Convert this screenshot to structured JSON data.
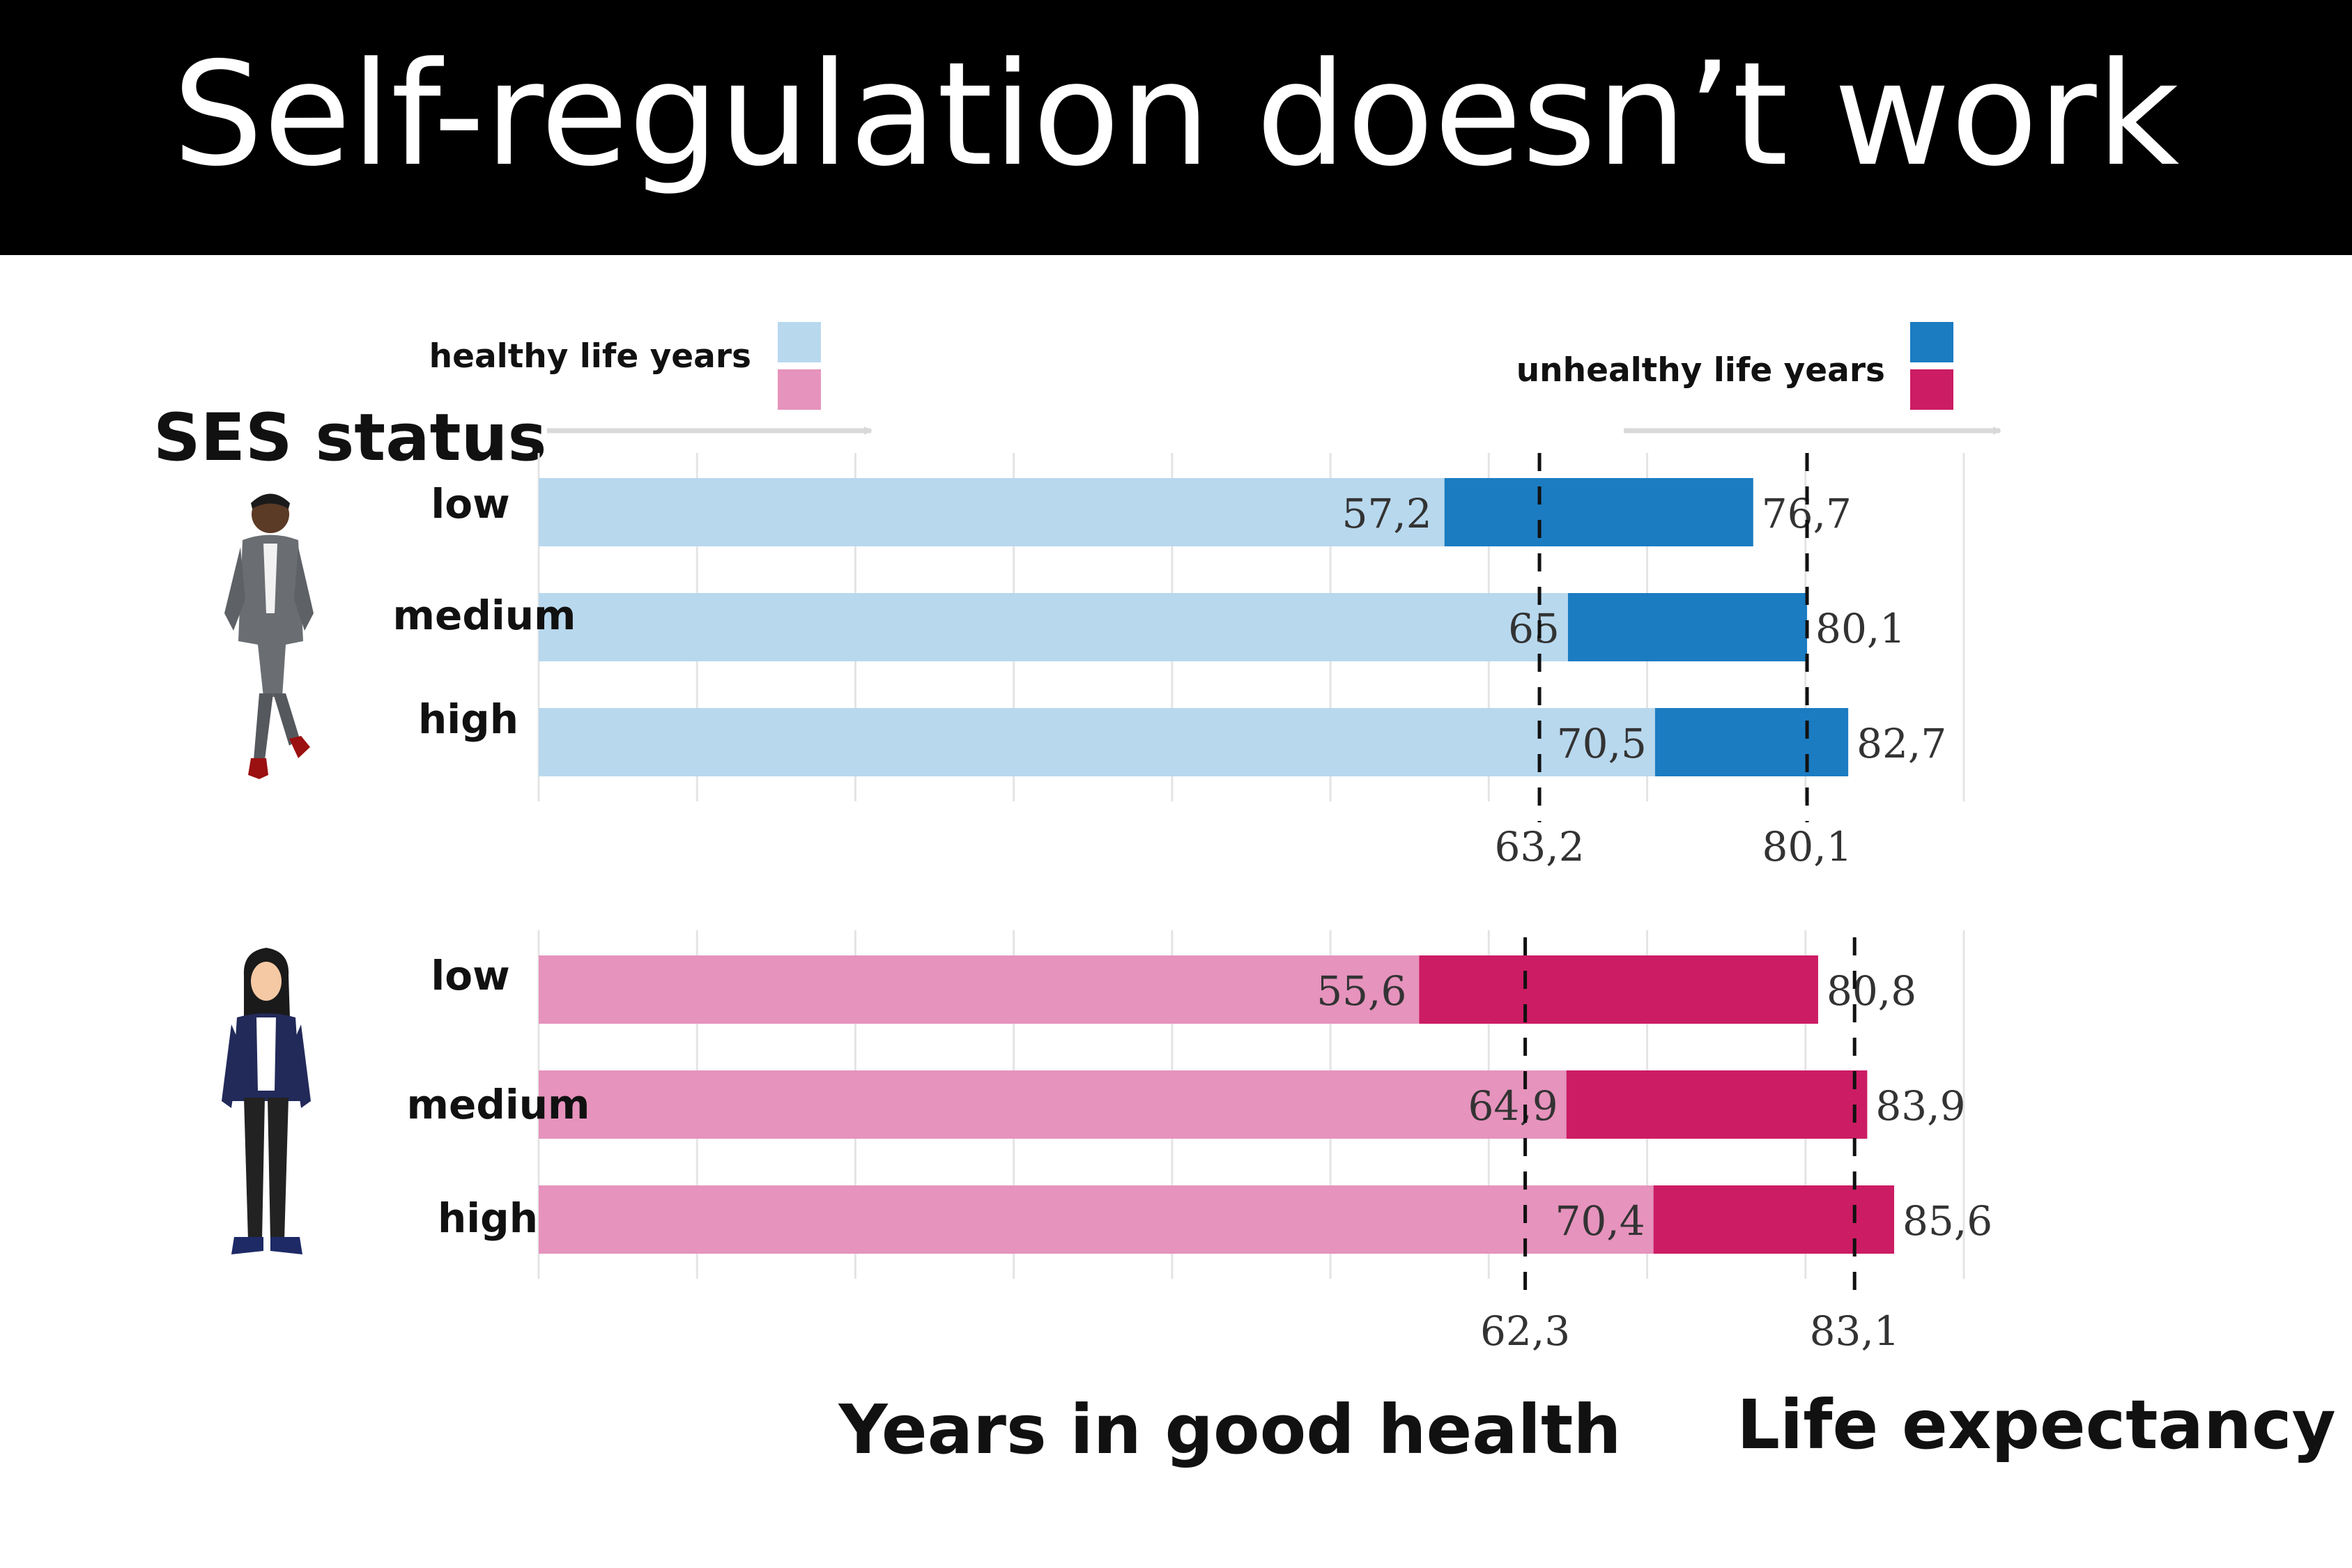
{
  "title": "Self-regulation doesn’t work",
  "colors": {
    "male_healthy": "#b8d8ee",
    "male_unhealthy": "#1b7cc2",
    "female_healthy": "#e693bd",
    "female_unhealthy": "#cc1c64",
    "header_bg": "#000000"
  },
  "legend": {
    "healthy_label": "healthy life years",
    "unhealthy_label": "unhealthy life years"
  },
  "ses_label": "SES status",
  "axis_labels": {
    "healthy": "Years in good health",
    "life": "Life expectancy"
  },
  "icons": [
    "man-figure-icon",
    "woman-figure-icon"
  ],
  "chart_data": [
    {
      "type": "bar",
      "stacked": true,
      "orientation": "horizontal",
      "group": "male",
      "categories": [
        "low",
        "medium",
        "high"
      ],
      "healthy_years": [
        57.2,
        65,
        70.5
      ],
      "life_expectancy": [
        76.7,
        80.1,
        82.7
      ],
      "healthy_labels": [
        "57,2",
        "65",
        "70,5"
      ],
      "life_labels": [
        "76,7",
        "80,1",
        "82,7"
      ],
      "reference_lines": {
        "healthy": {
          "value": 63.2,
          "label": "63,2"
        },
        "life": {
          "value": 80.1,
          "label": "80,1"
        }
      },
      "xlim": [
        0,
        90
      ],
      "grid": true
    },
    {
      "type": "bar",
      "stacked": true,
      "orientation": "horizontal",
      "group": "female",
      "categories": [
        "low",
        "medium",
        "high"
      ],
      "healthy_years": [
        55.6,
        64.9,
        70.4
      ],
      "life_expectancy": [
        80.8,
        83.9,
        85.6
      ],
      "healthy_labels": [
        "55,6",
        "64,9",
        "70,4"
      ],
      "life_labels": [
        "80,8",
        "83,9",
        "85,6"
      ],
      "reference_lines": {
        "healthy": {
          "value": 62.3,
          "label": "62,3"
        },
        "life": {
          "value": 83.1,
          "label": "83,1"
        }
      },
      "xlim": [
        0,
        90
      ],
      "grid": true
    }
  ]
}
